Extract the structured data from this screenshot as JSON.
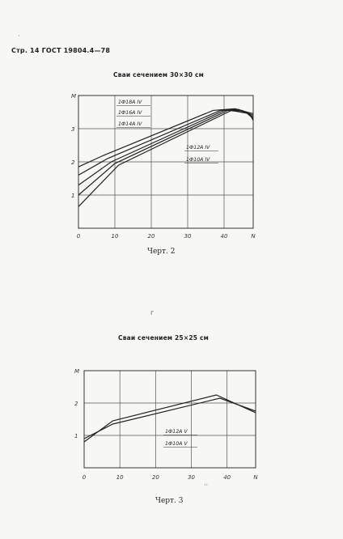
{
  "page": {
    "header": "Стр. 14 ГОСТ 19804.4—78",
    "stray_mark": "г",
    "dot_mark": "·",
    "bottom_mark": "··"
  },
  "chart_data": [
    {
      "type": "line",
      "title": "Сваи сечением 30×30 см",
      "caption": "Черт. 2",
      "xlabel": "",
      "ylabel": "",
      "x_tick_labels": [
        "0",
        "10",
        "20",
        "30",
        "40",
        "N"
      ],
      "y_tick_labels": [
        "1",
        "2",
        "3",
        "M"
      ],
      "xlim": [
        0,
        48
      ],
      "ylim": [
        0,
        4
      ],
      "grid": true,
      "annotations": [
        {
          "text": "1Ф18А IV",
          "line": 0
        },
        {
          "text": "1Ф16А IV",
          "line": 1
        },
        {
          "text": "1Ф14А IV",
          "line": 2
        },
        {
          "text": "1Ф12А IV",
          "line": 3
        },
        {
          "text": "1Ф10А IV",
          "line": 4
        }
      ],
      "series": [
        {
          "x": [
            0,
            7,
            37,
            43,
            48
          ],
          "y": [
            1.85,
            2.2,
            3.55,
            3.6,
            3.45
          ]
        },
        {
          "x": [
            0,
            8,
            39,
            44,
            48
          ],
          "y": [
            1.6,
            2.1,
            3.55,
            3.58,
            3.4
          ]
        },
        {
          "x": [
            0,
            9,
            40,
            45,
            48
          ],
          "y": [
            1.3,
            2.0,
            3.55,
            3.55,
            3.35
          ]
        },
        {
          "x": [
            0,
            10,
            41,
            46,
            48
          ],
          "y": [
            1.0,
            1.95,
            3.55,
            3.5,
            3.3
          ]
        },
        {
          "x": [
            0,
            11,
            42,
            47,
            48
          ],
          "y": [
            0.65,
            1.9,
            3.55,
            3.45,
            3.25
          ]
        }
      ]
    },
    {
      "type": "line",
      "title": "Сваи сечением 25×25 см",
      "caption": "Черт. 3",
      "xlabel": "",
      "ylabel": "",
      "x_tick_labels": [
        "0",
        "10",
        "20",
        "30",
        "40",
        "N"
      ],
      "y_tick_labels": [
        "1",
        "2",
        "M"
      ],
      "xlim": [
        0,
        48
      ],
      "ylim": [
        0,
        3
      ],
      "grid": true,
      "annotations": [
        {
          "text": "1Ф12А V",
          "line": 0
        },
        {
          "text": "1Ф10А V",
          "line": 1
        }
      ],
      "series": [
        {
          "x": [
            0,
            8,
            37,
            48
          ],
          "y": [
            0.8,
            1.45,
            2.25,
            1.7
          ]
        },
        {
          "x": [
            0,
            8,
            38,
            48
          ],
          "y": [
            0.9,
            1.35,
            2.15,
            1.75
          ]
        }
      ]
    }
  ]
}
